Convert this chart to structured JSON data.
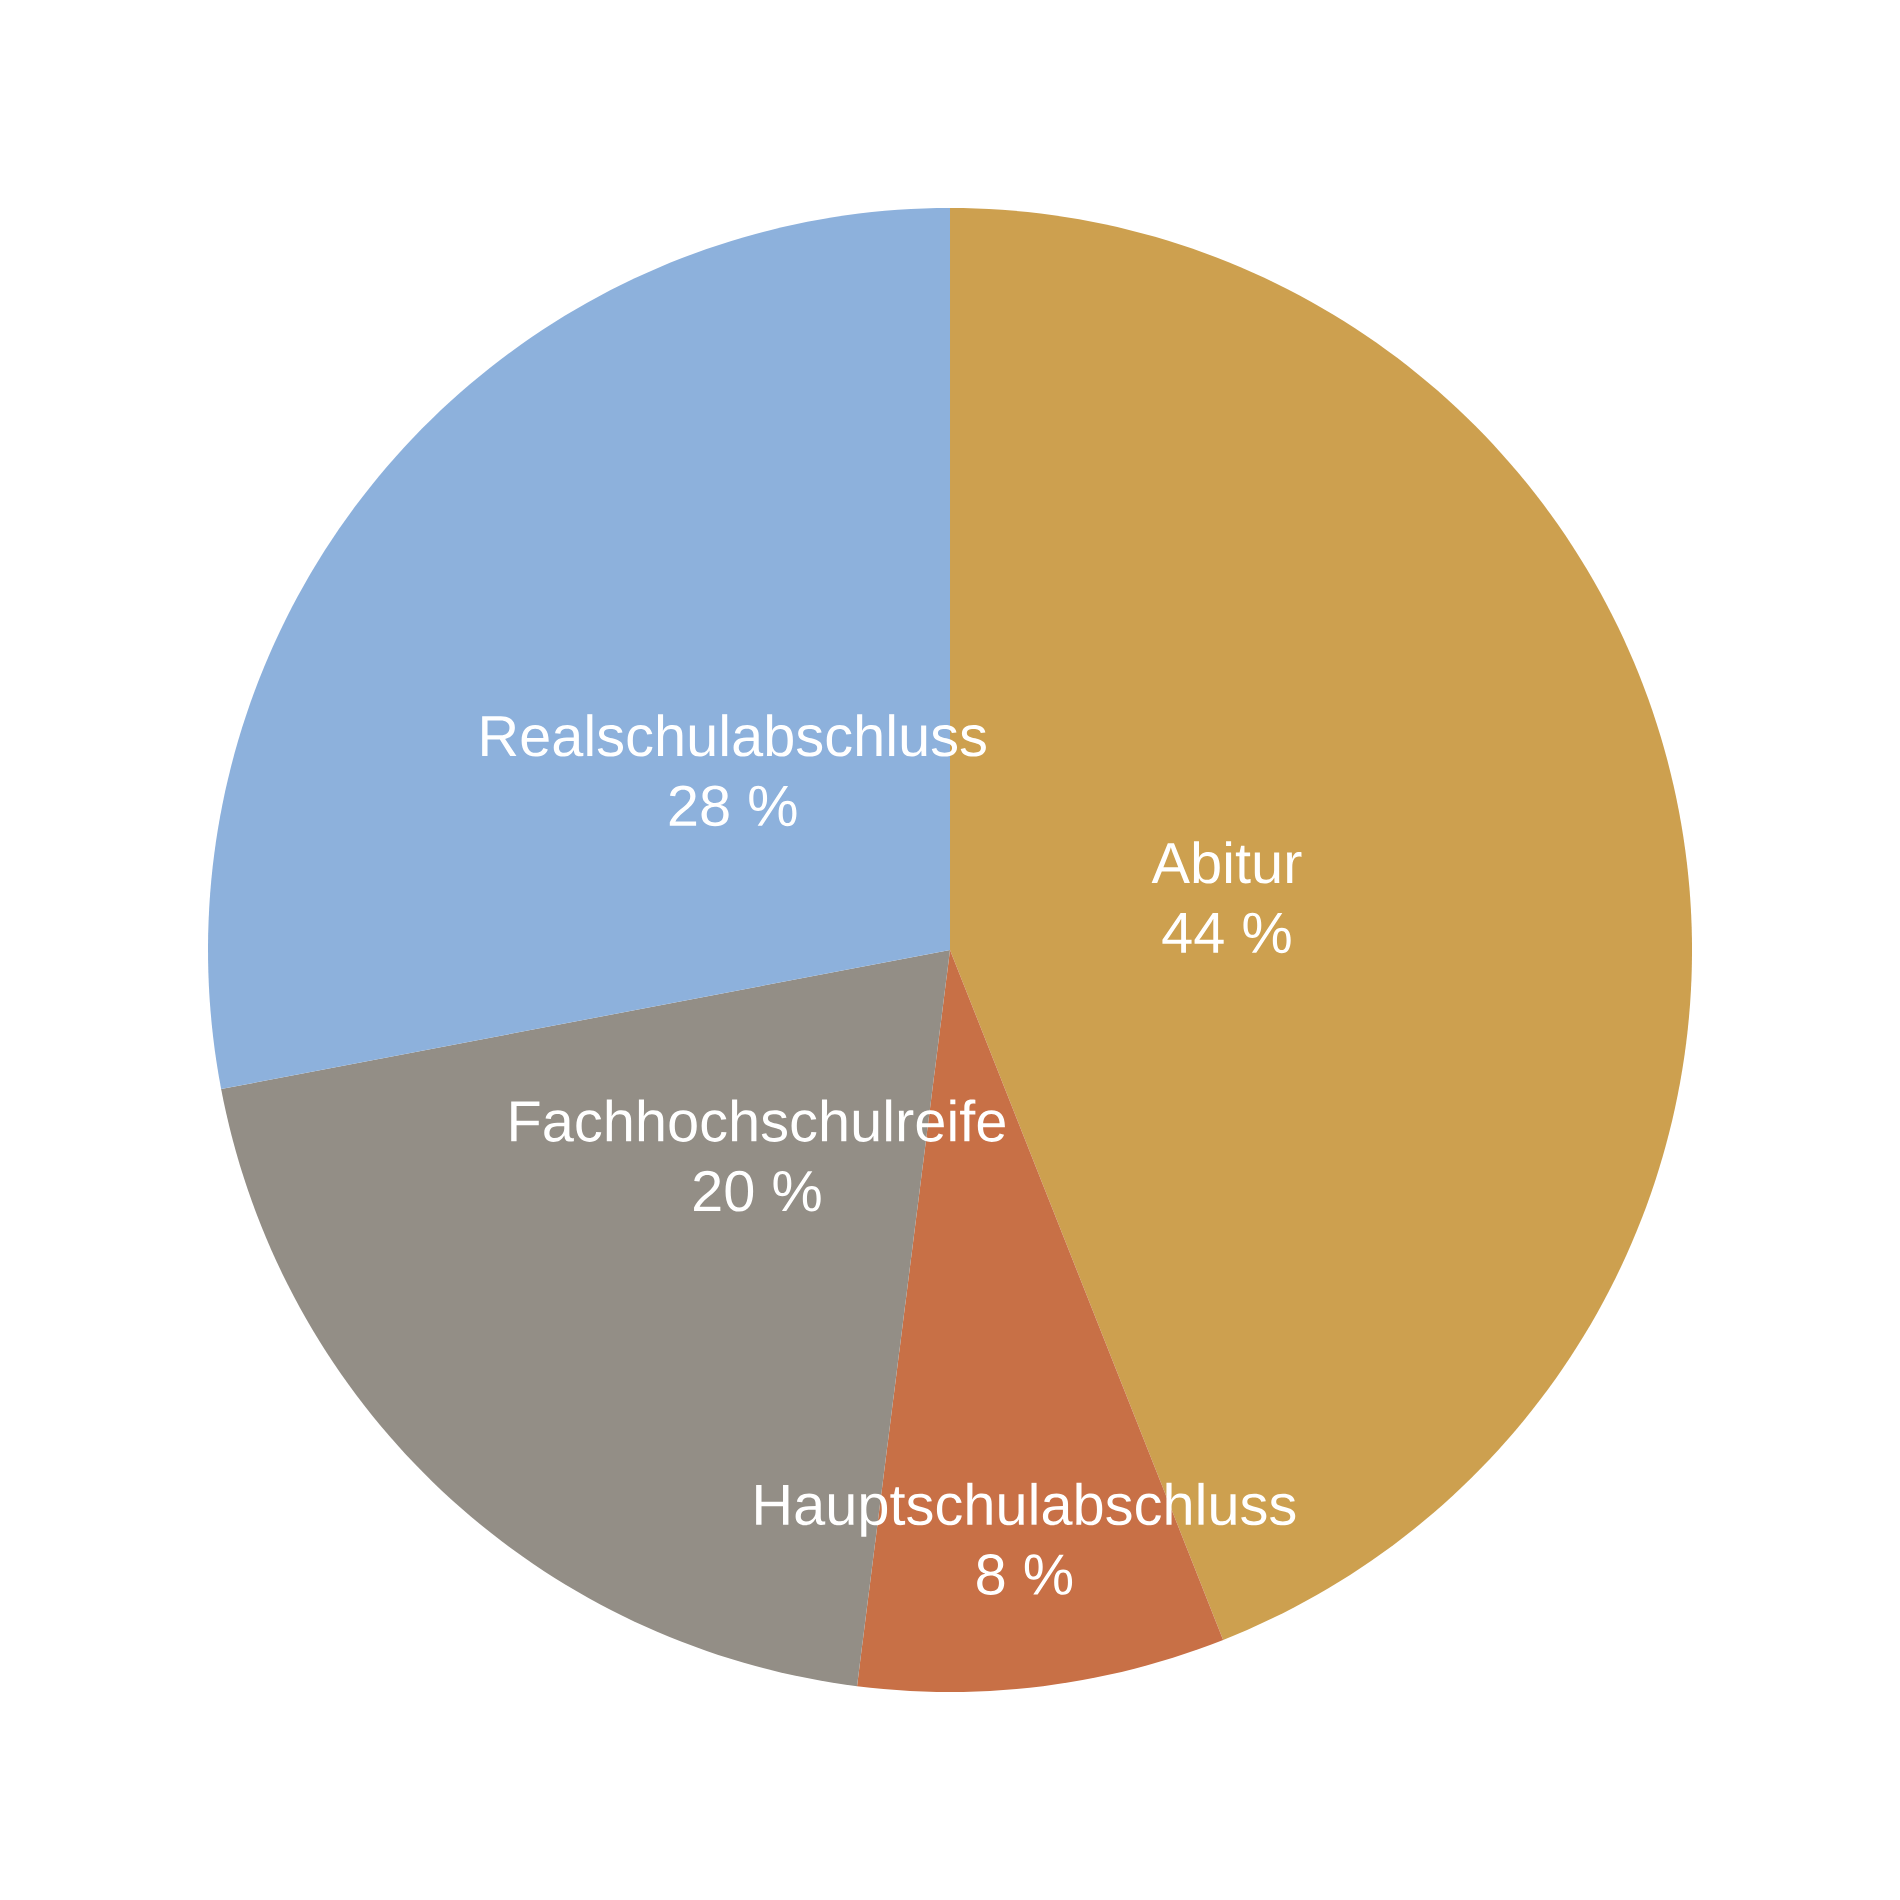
{
  "chart_data": {
    "type": "pie",
    "categories": [
      "Abitur",
      "Hauptschulabschluss",
      "Fachhochschulreife",
      "Realschulabschluss"
    ],
    "values": [
      44,
      8,
      20,
      28
    ],
    "value_labels": [
      "44 %",
      "8 %",
      "20 %",
      "28 %"
    ],
    "colors": [
      "#cda04f",
      "#c87046",
      "#938e86",
      "#8db1dc"
    ]
  }
}
